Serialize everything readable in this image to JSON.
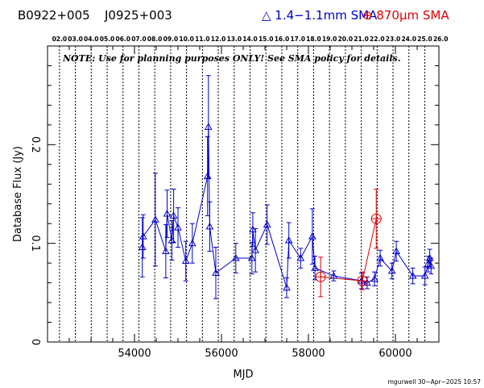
{
  "header": {
    "source1": "B0922+005",
    "source2": "J0925+003",
    "legend1": "△ 1.4−1.1mm SMA",
    "legend2": "⊕ 870μm SMA"
  },
  "footer": "mgurwell 30−Apr−2025 10:57",
  "chart_data": {
    "type": "scatter",
    "xlabel": "MJD",
    "ylabel": "Database Flux (Jy)",
    "note": "NOTE: Use for planning purposes ONLY!  See SMA policy for details.",
    "xlim": [
      52000,
      61000
    ],
    "ylim": [
      0,
      0.3
    ],
    "xticks": [
      "54000",
      "56000",
      "58000",
      "60000"
    ],
    "yticks": [
      "0",
      "0.1",
      "0.2"
    ],
    "year_labels": [
      "02.0",
      "03.0",
      "04.0",
      "05.0",
      "06.0",
      "07.0",
      "08.0",
      "09.0",
      "10.0",
      "11.0",
      "12.0",
      "13.0",
      "14.0",
      "15.0",
      "16.0",
      "17.0",
      "18.0",
      "19.0",
      "20.0",
      "21.0",
      "22.0",
      "23.0",
      "24.0",
      "25.0",
      "26.0"
    ],
    "colors": {
      "series1": "#0000cc",
      "series2": "#dd0000"
    },
    "series": [
      {
        "name": "1.4−1.1mm SMA",
        "marker": "triangle",
        "points": [
          {
            "x": 54180,
            "y": 0.096,
            "err": 0.03
          },
          {
            "x": 54200,
            "y": 0.107,
            "err": 0.022
          },
          {
            "x": 54480,
            "y": 0.124,
            "err": 0.047
          },
          {
            "x": 54720,
            "y": 0.092,
            "err": 0.027
          },
          {
            "x": 54750,
            "y": 0.13,
            "err": 0.024
          },
          {
            "x": 54860,
            "y": 0.103,
            "err": 0.02
          },
          {
            "x": 54900,
            "y": 0.128,
            "err": 0.027
          },
          {
            "x": 55000,
            "y": 0.116,
            "err": 0.02
          },
          {
            "x": 55180,
            "y": 0.082,
            "err": 0.02
          },
          {
            "x": 55330,
            "y": 0.1,
            "err": 0.02
          },
          {
            "x": 55680,
            "y": 0.168,
            "err": 0.04
          },
          {
            "x": 55700,
            "y": 0.218,
            "err": 0.052
          },
          {
            "x": 55730,
            "y": 0.117,
            "err": 0.025
          },
          {
            "x": 55870,
            "y": 0.07,
            "err": 0.026
          },
          {
            "x": 56330,
            "y": 0.085,
            "err": 0.015
          },
          {
            "x": 56700,
            "y": 0.085,
            "err": 0.016
          },
          {
            "x": 56720,
            "y": 0.114,
            "err": 0.017
          },
          {
            "x": 56780,
            "y": 0.093,
            "err": 0.022
          },
          {
            "x": 57050,
            "y": 0.119,
            "err": 0.02
          },
          {
            "x": 57500,
            "y": 0.055,
            "err": 0.01
          },
          {
            "x": 57550,
            "y": 0.103,
            "err": 0.018
          },
          {
            "x": 57820,
            "y": 0.085,
            "err": 0.01
          },
          {
            "x": 58090,
            "y": 0.107,
            "err": 0.028
          },
          {
            "x": 58150,
            "y": 0.075,
            "err": 0.012
          },
          {
            "x": 58580,
            "y": 0.067,
            "err": 0.005
          },
          {
            "x": 59220,
            "y": 0.062,
            "err": 0.008
          },
          {
            "x": 59350,
            "y": 0.06,
            "err": 0.006
          },
          {
            "x": 59520,
            "y": 0.064,
            "err": 0.007
          },
          {
            "x": 59650,
            "y": 0.085,
            "err": 0.008
          },
          {
            "x": 59920,
            "y": 0.072,
            "err": 0.008
          },
          {
            "x": 60020,
            "y": 0.092,
            "err": 0.01
          },
          {
            "x": 60400,
            "y": 0.067,
            "err": 0.008
          },
          {
            "x": 60680,
            "y": 0.067,
            "err": 0.009
          },
          {
            "x": 60750,
            "y": 0.079,
            "err": 0.008
          },
          {
            "x": 60790,
            "y": 0.085,
            "err": 0.009
          },
          {
            "x": 60820,
            "y": 0.077,
            "err": 0.008
          }
        ]
      },
      {
        "name": "870μm SMA",
        "marker": "circle-plus",
        "points": [
          {
            "x": 58280,
            "y": 0.066,
            "err": 0.02
          },
          {
            "x": 59240,
            "y": 0.062,
            "err": 0.009
          },
          {
            "x": 59560,
            "y": 0.125,
            "err": 0.03
          }
        ]
      }
    ]
  }
}
